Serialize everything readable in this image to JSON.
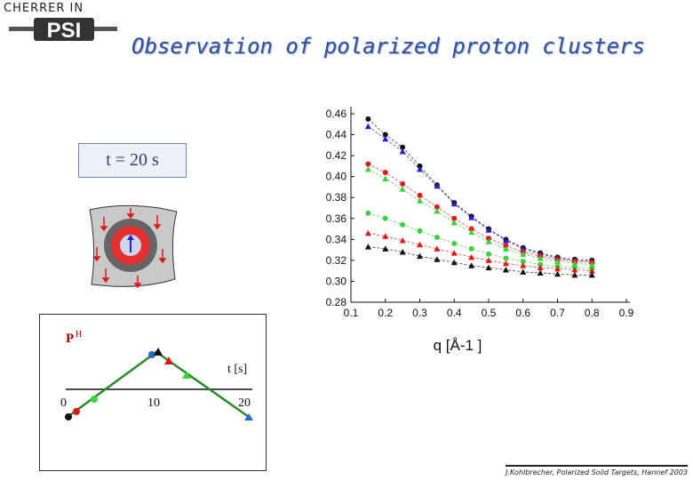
{
  "header": {
    "logo_text": "CHERRER IN",
    "logo_mark": "PSI",
    "title": "Observation of polarized proton clusters"
  },
  "time_label": "t = 20 s",
  "schematic": {
    "icon": "polarized-cluster-icon"
  },
  "inset": {
    "y_label": "P",
    "y_label_sub": "H",
    "x_label": "t [s]",
    "ticks": [
      "0",
      "10",
      "20"
    ]
  },
  "footer": "J.Kohlbrecher, Polarized Solid Targets, Hannef 2003",
  "colors": {
    "black": "#111111",
    "red": "#e01818",
    "green": "#3ecf3e",
    "blue": "#2020cc",
    "title": "#2f4f9f"
  },
  "chart_data": {
    "type": "scatter",
    "title": "",
    "xlabel": "q [Å-1 ]",
    "ylabel": "",
    "xlim": [
      0.1,
      0.9
    ],
    "ylim": [
      0.28,
      0.46
    ],
    "x_ticks": [
      "0.1",
      "0.2",
      "0.3",
      "0.4",
      "0.5",
      "0.6",
      "0.7",
      "0.8",
      "0.9"
    ],
    "y_ticks": [
      "0.28",
      "0.30",
      "0.32",
      "0.34",
      "0.36",
      "0.38",
      "0.40",
      "0.42",
      "0.44",
      "0.46"
    ],
    "x": [
      0.15,
      0.2,
      0.25,
      0.3,
      0.35,
      0.4,
      0.45,
      0.5,
      0.55,
      0.6,
      0.65,
      0.7,
      0.75,
      0.8
    ],
    "series": [
      {
        "color": "#111111",
        "marker": "circle",
        "values": [
          0.455,
          0.44,
          0.428,
          0.41,
          0.392,
          0.375,
          0.362,
          0.35,
          0.34,
          0.332,
          0.327,
          0.323,
          0.321,
          0.32
        ]
      },
      {
        "color": "#2020cc",
        "marker": "triangle",
        "values": [
          0.448,
          0.436,
          0.424,
          0.407,
          0.391,
          0.374,
          0.361,
          0.349,
          0.339,
          0.331,
          0.326,
          0.322,
          0.32,
          0.319
        ]
      },
      {
        "color": "#e01818",
        "marker": "circle",
        "values": [
          0.412,
          0.404,
          0.393,
          0.382,
          0.371,
          0.36,
          0.35,
          0.341,
          0.334,
          0.328,
          0.324,
          0.321,
          0.319,
          0.318
        ]
      },
      {
        "color": "#3ecf3e",
        "marker": "triangle",
        "values": [
          0.407,
          0.398,
          0.388,
          0.377,
          0.367,
          0.356,
          0.347,
          0.338,
          0.331,
          0.326,
          0.322,
          0.319,
          0.317,
          0.316
        ]
      },
      {
        "color": "#3ecf3e",
        "marker": "circle",
        "values": [
          0.365,
          0.36,
          0.354,
          0.348,
          0.342,
          0.336,
          0.331,
          0.326,
          0.322,
          0.319,
          0.316,
          0.314,
          0.313,
          0.312
        ]
      },
      {
        "color": "#e01818",
        "marker": "triangle",
        "values": [
          0.346,
          0.343,
          0.339,
          0.335,
          0.331,
          0.327,
          0.323,
          0.32,
          0.317,
          0.315,
          0.313,
          0.312,
          0.311,
          0.31
        ]
      },
      {
        "color": "#111111",
        "marker": "triangle",
        "values": [
          0.333,
          0.331,
          0.328,
          0.324,
          0.321,
          0.318,
          0.315,
          0.313,
          0.311,
          0.309,
          0.308,
          0.307,
          0.306,
          0.306
        ]
      }
    ]
  }
}
